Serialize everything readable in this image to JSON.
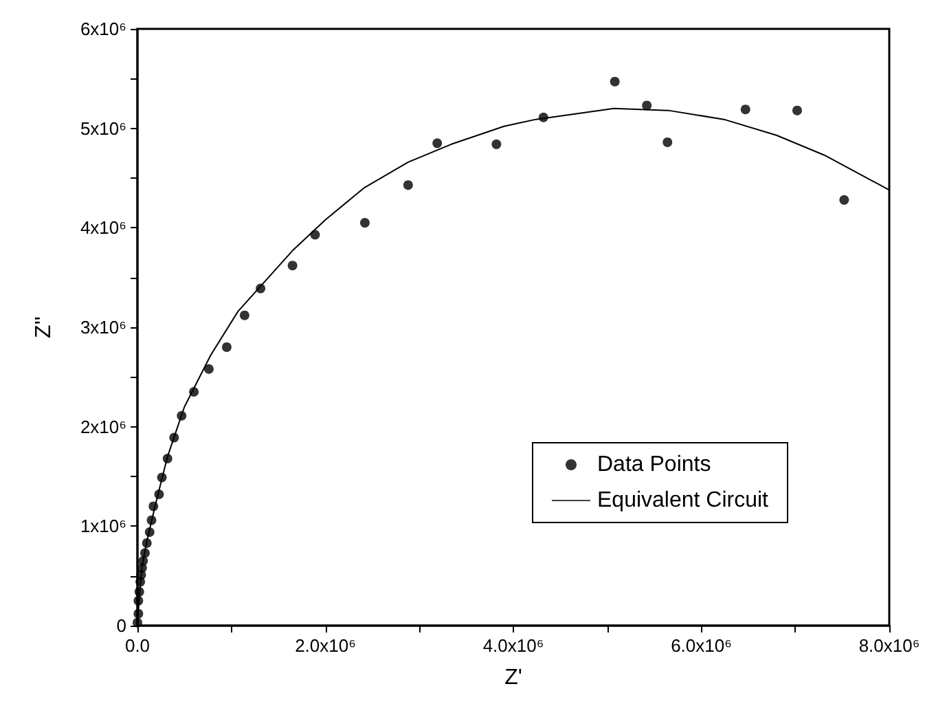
{
  "chart_data": {
    "type": "scatter",
    "xlabel": "Z'",
    "ylabel": "Z''",
    "xlim": [
      0,
      8000000
    ],
    "ylim": [
      0,
      6000000
    ],
    "xticks": [
      {
        "value": 0,
        "label": "0.0"
      },
      {
        "value": 1000000,
        "label": null
      },
      {
        "value": 2000000,
        "label": "2.0x10⁶"
      },
      {
        "value": 3000000,
        "label": null
      },
      {
        "value": 4000000,
        "label": "4.0x10⁶"
      },
      {
        "value": 5000000,
        "label": null
      },
      {
        "value": 6000000,
        "label": "6.0x10⁶"
      },
      {
        "value": 7000000,
        "label": null
      },
      {
        "value": 8000000,
        "label": "8.0x10⁶"
      }
    ],
    "yticks": [
      0,
      {
        "value": 500000,
        "label": null
      },
      {
        "value": 1000000,
        "label": "1x10⁶"
      },
      {
        "value": 1500000,
        "label": null
      },
      {
        "value": 2000000,
        "label": "2x10⁶"
      },
      {
        "value": 2500000,
        "label": null
      },
      {
        "value": 3000000,
        "label": "3x10⁶"
      },
      {
        "value": 3500000,
        "label": null
      },
      {
        "value": 4000000,
        "label": "4x10⁶"
      },
      {
        "value": 4500000,
        "label": null
      },
      {
        "value": 5000000,
        "label": "5x10⁶"
      },
      {
        "value": 5500000,
        "label": null
      },
      {
        "value": 6000000,
        "label": "6x10⁶"
      }
    ],
    "grid": false,
    "legend": "bottom right",
    "marker": "circle",
    "series": [
      {
        "name": "Data Points",
        "color": "#000000",
        "x": [
          0,
          10000,
          10000,
          20000,
          30000,
          40000,
          50000,
          60000,
          80000,
          100000,
          130000,
          150000,
          170000,
          230000,
          260000,
          320000,
          390000,
          470000,
          600000,
          760000,
          950000,
          1140000,
          1310000,
          1650000,
          1890000,
          2420000,
          2880000,
          3190000,
          3820000,
          4320000,
          5080000,
          5420000,
          5640000,
          6470000,
          7020000,
          7520000
        ],
        "values": [
          30000,
          120000,
          250000,
          340000,
          440000,
          510000,
          580000,
          650000,
          730000,
          830000,
          940000,
          1060000,
          1200000,
          1320000,
          1490000,
          1680000,
          1890000,
          2110000,
          2350000,
          2580000,
          2800000,
          3120000,
          3390000,
          3620000,
          3930000,
          4050000,
          4430000,
          4850000,
          4840000,
          5110000,
          5470000,
          5230000,
          4860000,
          5190000,
          5180000,
          4280000
        ]
      },
      {
        "name": "Equivalent Circuit",
        "type": "line",
        "color": "#000000",
        "marker": "none",
        "line_style": "solid",
        "x": [
          0,
          20000,
          50000,
          100000,
          200000,
          320000,
          500000,
          780000,
          1070000,
          1660000,
          2000000,
          2410000,
          2880000,
          3340000,
          3900000,
          4240000,
          5070000,
          5650000,
          6240000,
          6800000,
          7310000,
          8000000
        ],
        "values": [
          0,
          300000,
          600000,
          850000,
          1250000,
          1700000,
          2200000,
          2720000,
          3160000,
          3780000,
          4080000,
          4400000,
          4660000,
          4840000,
          5020000,
          5090000,
          5200000,
          5180000,
          5090000,
          4930000,
          4730000,
          4380000
        ]
      }
    ]
  }
}
